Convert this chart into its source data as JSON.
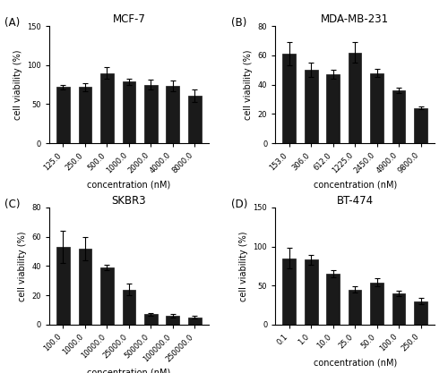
{
  "panels": [
    {
      "label": "(A)",
      "title": "MCF-7",
      "categories": [
        "125.0",
        "250.0",
        "500.0",
        "1000.0",
        "2000.0",
        "4000.0",
        "8000.0"
      ],
      "values": [
        72,
        72,
        90,
        79,
        75,
        73,
        61
      ],
      "errors": [
        3,
        5,
        8,
        4,
        6,
        7,
        8
      ],
      "ylabel": "cell viability (%)",
      "xlabel": "concentration (nM)",
      "ylim": [
        0,
        150
      ],
      "yticks": [
        0,
        50,
        100,
        150
      ]
    },
    {
      "label": "(B)",
      "title": "MDA-MB-231",
      "categories": [
        "153.0",
        "306.0",
        "612.0",
        "1225.0",
        "2450.0",
        "4900.0",
        "9800.0"
      ],
      "values": [
        61,
        50,
        47,
        62,
        48,
        36,
        24
      ],
      "errors": [
        8,
        5,
        3,
        7,
        3,
        2,
        1
      ],
      "ylabel": "cell viability (%)",
      "xlabel": "concentration (nM)",
      "ylim": [
        0,
        80
      ],
      "yticks": [
        0,
        20,
        40,
        60,
        80
      ]
    },
    {
      "label": "(C)",
      "title": "SKBR3",
      "categories": [
        "100.0",
        "1000.0",
        "10000.0",
        "25000.0",
        "50000.0",
        "100000.0",
        "250000.0"
      ],
      "values": [
        53,
        52,
        39,
        24,
        7,
        6,
        5
      ],
      "errors": [
        11,
        8,
        2,
        4,
        1,
        1,
        1
      ],
      "ylabel": "cell viability (%)",
      "xlabel": "concentration (nM)",
      "ylim": [
        0,
        80
      ],
      "yticks": [
        0,
        20,
        40,
        60,
        80
      ]
    },
    {
      "label": "(D)",
      "title": "BT-474",
      "categories": [
        "0.1",
        "1.0",
        "10.0",
        "25.0",
        "50.0",
        "100.0",
        "250.0"
      ],
      "values": [
        85,
        83,
        65,
        45,
        54,
        40,
        30
      ],
      "errors": [
        13,
        6,
        5,
        4,
        5,
        3,
        4
      ],
      "ylabel": "cell viability (%)",
      "xlabel": "concentration (nM)",
      "ylim": [
        0,
        150
      ],
      "yticks": [
        0,
        50,
        100,
        150
      ]
    }
  ],
  "bar_color": "#1a1a1a",
  "bar_edge_color": "#1a1a1a",
  "background_color": "#ffffff",
  "tick_fontsize": 6.0,
  "label_fontsize": 7.0,
  "title_fontsize": 8.5,
  "panel_label_fontsize": 8.5,
  "bar_width": 0.6,
  "capsize": 2
}
